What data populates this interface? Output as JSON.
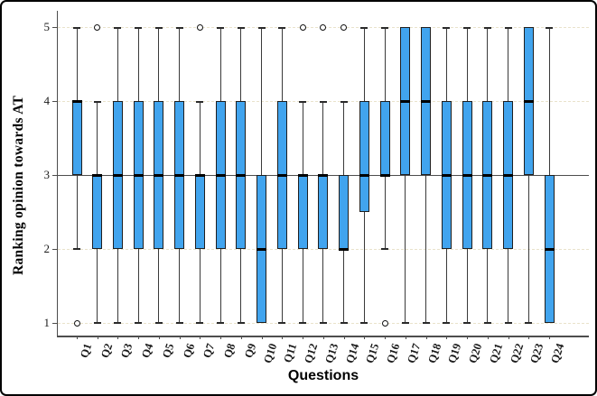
{
  "figure": {
    "box_fill": "#41a4ee",
    "box_border": "#1f1f1f",
    "grid_color": "#e9e2cb",
    "axis_color": "#4d4d4d",
    "reference_line_y": 3
  },
  "chart_data": {
    "type": "boxplot",
    "title": "",
    "xlabel": "Questions",
    "ylabel": "Ranking opinion towards AT",
    "ylim": [
      1,
      5
    ],
    "y_ticks": [
      1,
      2,
      3,
      4,
      5
    ],
    "grid": "horizontal-dashed",
    "categories": [
      "Q1",
      "Q2",
      "Q3",
      "Q4",
      "Q5",
      "Q6",
      "Q7",
      "Q8",
      "Q9",
      "Q10",
      "Q11",
      "Q12",
      "Q13",
      "Q14",
      "Q15",
      "Q16",
      "Q17",
      "Q18",
      "Q19",
      "Q20",
      "Q21",
      "Q22",
      "Q23",
      "Q24"
    ],
    "boxes": [
      {
        "label": "Q1",
        "whisker_low": 2,
        "q1": 3,
        "median": 4,
        "q3": 4,
        "whisker_high": 5,
        "outliers": [
          1
        ]
      },
      {
        "label": "Q2",
        "whisker_low": 1,
        "q1": 2,
        "median": 3,
        "q3": 3,
        "whisker_high": 4,
        "outliers": [
          5
        ]
      },
      {
        "label": "Q3",
        "whisker_low": 1,
        "q1": 2,
        "median": 3,
        "q3": 4,
        "whisker_high": 5,
        "outliers": []
      },
      {
        "label": "Q4",
        "whisker_low": 1,
        "q1": 2,
        "median": 3,
        "q3": 4,
        "whisker_high": 5,
        "outliers": []
      },
      {
        "label": "Q5",
        "whisker_low": 1,
        "q1": 2,
        "median": 3,
        "q3": 4,
        "whisker_high": 5,
        "outliers": []
      },
      {
        "label": "Q6",
        "whisker_low": 1,
        "q1": 2,
        "median": 3,
        "q3": 4,
        "whisker_high": 5,
        "outliers": []
      },
      {
        "label": "Q7",
        "whisker_low": 1,
        "q1": 2,
        "median": 3,
        "q3": 3,
        "whisker_high": 4,
        "outliers": [
          5
        ]
      },
      {
        "label": "Q8",
        "whisker_low": 1,
        "q1": 2,
        "median": 3,
        "q3": 4,
        "whisker_high": 5,
        "outliers": []
      },
      {
        "label": "Q9",
        "whisker_low": 1,
        "q1": 2,
        "median": 3,
        "q3": 4,
        "whisker_high": 5,
        "outliers": []
      },
      {
        "label": "Q10",
        "whisker_low": 1,
        "q1": 1,
        "median": 2,
        "q3": 3,
        "whisker_high": 5,
        "outliers": []
      },
      {
        "label": "Q11",
        "whisker_low": 1,
        "q1": 2,
        "median": 3,
        "q3": 4,
        "whisker_high": 5,
        "outliers": []
      },
      {
        "label": "Q12",
        "whisker_low": 1,
        "q1": 2,
        "median": 3,
        "q3": 3,
        "whisker_high": 4,
        "outliers": [
          5
        ]
      },
      {
        "label": "Q13",
        "whisker_low": 1,
        "q1": 2,
        "median": 3,
        "q3": 3,
        "whisker_high": 4,
        "outliers": [
          5
        ]
      },
      {
        "label": "Q14",
        "whisker_low": 1,
        "q1": 2,
        "median": 2,
        "q3": 3,
        "whisker_high": 4,
        "outliers": [
          5
        ]
      },
      {
        "label": "Q15",
        "whisker_low": 1,
        "q1": 2.5,
        "median": 3,
        "q3": 4,
        "whisker_high": 5,
        "outliers": []
      },
      {
        "label": "Q16",
        "whisker_low": 2,
        "q1": 3,
        "median": 3,
        "q3": 4,
        "whisker_high": 5,
        "outliers": [
          1
        ]
      },
      {
        "label": "Q17",
        "whisker_low": 1,
        "q1": 3,
        "median": 4,
        "q3": 5,
        "whisker_high": 5,
        "outliers": []
      },
      {
        "label": "Q18",
        "whisker_low": 1,
        "q1": 3,
        "median": 4,
        "q3": 5,
        "whisker_high": 5,
        "outliers": []
      },
      {
        "label": "Q19",
        "whisker_low": 1,
        "q1": 2,
        "median": 3,
        "q3": 4,
        "whisker_high": 5,
        "outliers": []
      },
      {
        "label": "Q20",
        "whisker_low": 1,
        "q1": 2,
        "median": 3,
        "q3": 4,
        "whisker_high": 5,
        "outliers": []
      },
      {
        "label": "Q21",
        "whisker_low": 1,
        "q1": 2,
        "median": 3,
        "q3": 4,
        "whisker_high": 5,
        "outliers": []
      },
      {
        "label": "Q22",
        "whisker_low": 1,
        "q1": 2,
        "median": 3,
        "q3": 4,
        "whisker_high": 5,
        "outliers": []
      },
      {
        "label": "Q23",
        "whisker_low": 1,
        "q1": 3,
        "median": 4,
        "q3": 5,
        "whisker_high": 5,
        "outliers": []
      },
      {
        "label": "Q24",
        "whisker_low": 1,
        "q1": 1,
        "median": 2,
        "q3": 3,
        "whisker_high": 5,
        "outliers": []
      }
    ]
  }
}
